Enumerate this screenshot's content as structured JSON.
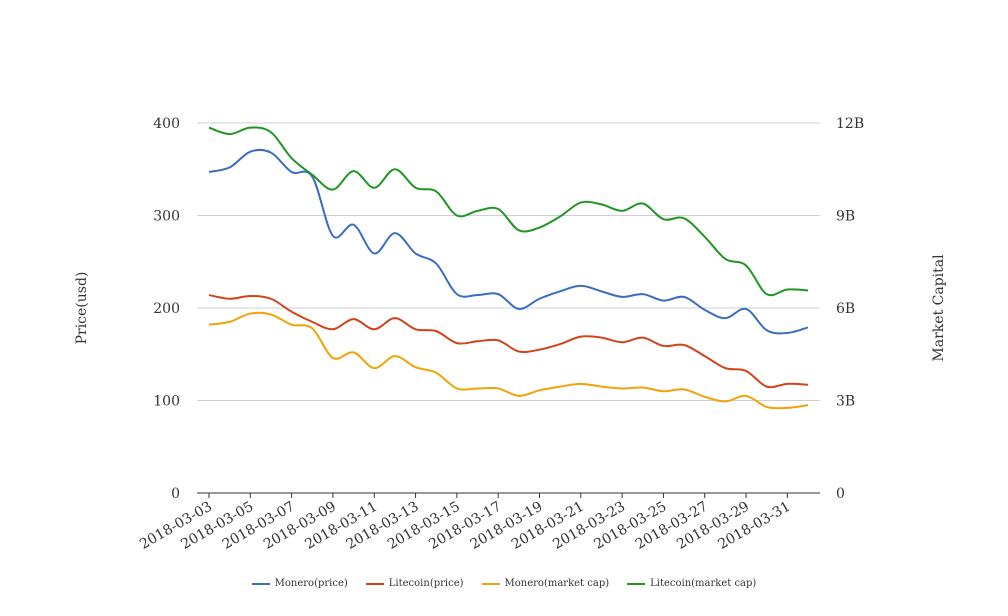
{
  "chart_data": {
    "type": "line",
    "x": [
      "2018-03-03",
      "2018-03-04",
      "2018-03-05",
      "2018-03-06",
      "2018-03-07",
      "2018-03-08",
      "2018-03-09",
      "2018-03-10",
      "2018-03-11",
      "2018-03-12",
      "2018-03-13",
      "2018-03-14",
      "2018-03-15",
      "2018-03-16",
      "2018-03-17",
      "2018-03-18",
      "2018-03-19",
      "2018-03-20",
      "2018-03-21",
      "2018-03-22",
      "2018-03-23",
      "2018-03-24",
      "2018-03-25",
      "2018-03-26",
      "2018-03-27",
      "2018-03-28",
      "2018-03-29",
      "2018-03-30",
      "2018-03-31",
      "2018-04-01"
    ],
    "x_tick_labels": [
      "2018-03-03",
      "2018-03-05",
      "2018-03-07",
      "2018-03-09",
      "2018-03-11",
      "2018-03-13",
      "2018-03-15",
      "2018-03-17",
      "2018-03-19",
      "2018-03-21",
      "2018-03-23",
      "2018-03-25",
      "2018-03-27",
      "2018-03-29",
      "2018-03-31"
    ],
    "ylabel_left": "Price(usd)",
    "ylabel_right": "Market Capital",
    "ylim_left": [
      0,
      400
    ],
    "ylim_right": [
      0,
      12000000000
    ],
    "yticks_left": [
      "0",
      "100",
      "200",
      "300",
      "400"
    ],
    "yticks_right": [
      "0",
      "3B",
      "6B",
      "9B",
      "12B"
    ],
    "grid": true,
    "legend_position": "bottom",
    "series": [
      {
        "name": "Monero(price)",
        "axis": "left",
        "color": "#3a6cc0",
        "values": [
          347,
          352,
          369,
          368,
          347,
          342,
          278,
          290,
          259,
          281,
          259,
          248,
          215,
          214,
          215,
          199,
          210,
          218,
          224,
          218,
          212,
          215,
          208,
          212,
          198,
          189,
          199,
          176,
          173,
          179
        ]
      },
      {
        "name": "Litecoin(price)",
        "axis": "left",
        "color": "#d2431b",
        "values": [
          214,
          210,
          213,
          210,
          196,
          185,
          177,
          188,
          177,
          189,
          177,
          175,
          162,
          164,
          165,
          153,
          155,
          161,
          169,
          168,
          163,
          168,
          159,
          160,
          148,
          135,
          132,
          115,
          118,
          117
        ]
      },
      {
        "name": "Monero(market cap)",
        "axis": "right",
        "color": "#f0a30a",
        "values": [
          5460000000,
          5550000000,
          5820000000,
          5790000000,
          5460000000,
          5340000000,
          4380000000,
          4560000000,
          4050000000,
          4440000000,
          4080000000,
          3900000000,
          3390000000,
          3390000000,
          3390000000,
          3150000000,
          3330000000,
          3450000000,
          3540000000,
          3450000000,
          3390000000,
          3420000000,
          3300000000,
          3360000000,
          3120000000,
          2970000000,
          3150000000,
          2790000000,
          2760000000,
          2850000000
        ]
      },
      {
        "name": "Litecoin(market cap)",
        "axis": "right",
        "color": "#1f9622",
        "values": [
          11850000000,
          11640000000,
          11850000000,
          11700000000,
          10860000000,
          10320000000,
          9840000000,
          10440000000,
          9900000000,
          10500000000,
          9900000000,
          9780000000,
          9000000000,
          9150000000,
          9210000000,
          8520000000,
          8610000000,
          8970000000,
          9420000000,
          9360000000,
          9150000000,
          9390000000,
          8880000000,
          8910000000,
          8310000000,
          7590000000,
          7380000000,
          6450000000,
          6600000000,
          6570000000
        ]
      }
    ]
  }
}
